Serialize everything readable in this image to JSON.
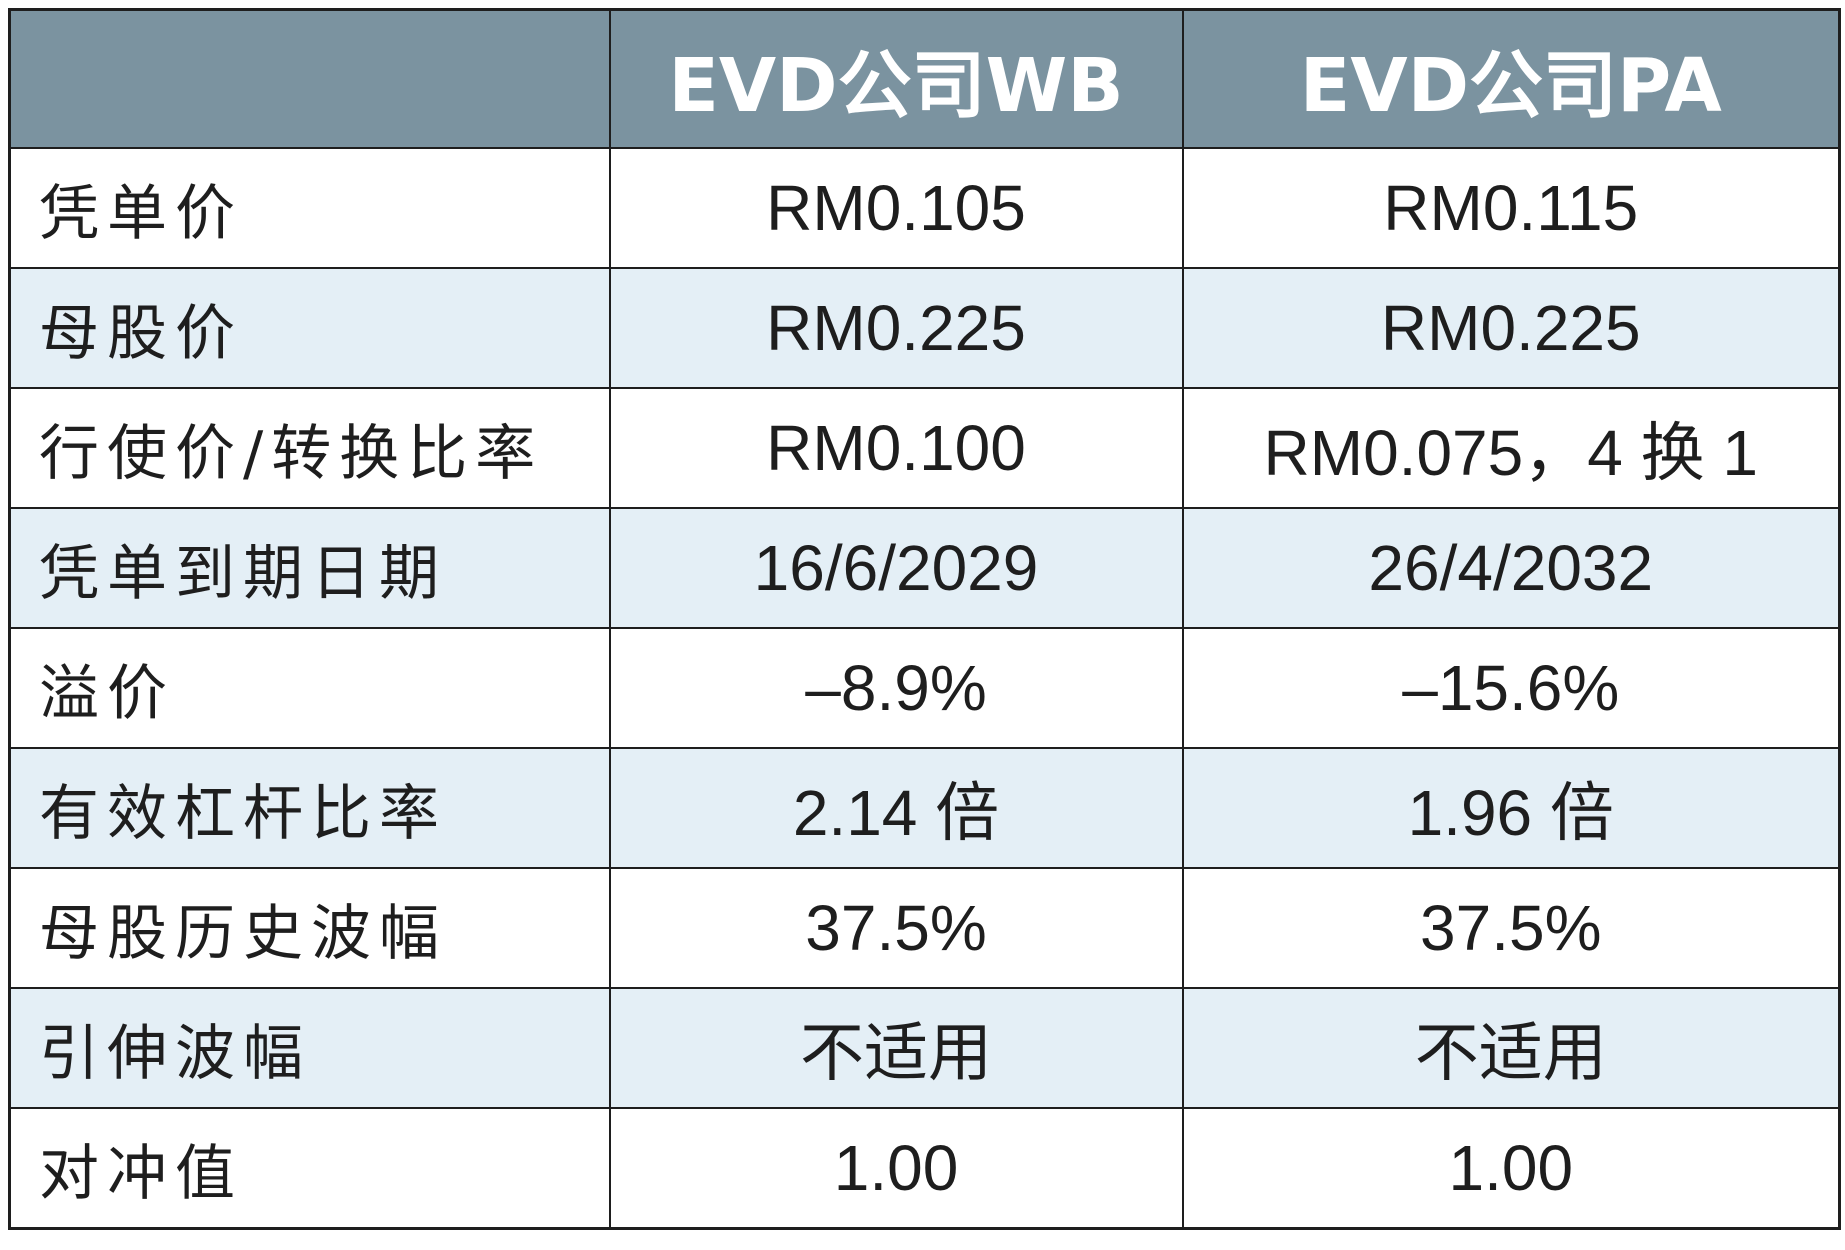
{
  "header": {
    "corner": "",
    "col_wb": "EVD公司WB",
    "col_pa": "EVD公司PA"
  },
  "rows": [
    {
      "label": "凭单价",
      "wb": "RM0.105",
      "pa": "RM0.115"
    },
    {
      "label": "母股价",
      "wb": "RM0.225",
      "pa": "RM0.225"
    },
    {
      "label": "行使价/转换比率",
      "wb": "RM0.100",
      "pa": "RM0.075，4 换 1"
    },
    {
      "label": "凭单到期日期",
      "wb": "16/6/2029",
      "pa": "26/4/2032"
    },
    {
      "label": "溢价",
      "wb": "–8.9%",
      "pa": "–15.6%"
    },
    {
      "label": "有效杠杆比率",
      "wb": "2.14 倍",
      "pa": "1.96 倍"
    },
    {
      "label": "母股历史波幅",
      "wb": "37.5%",
      "pa": "37.5%"
    },
    {
      "label": "引伸波幅",
      "wb": "不适用",
      "pa": "不适用"
    },
    {
      "label": "对冲值",
      "wb": "1.00",
      "pa": "1.00"
    }
  ],
  "colors": {
    "header_bg": "#7b93a0",
    "header_text": "#ffffff",
    "stripe_bg": "#e4eff6",
    "border": "#1e1e1e"
  }
}
